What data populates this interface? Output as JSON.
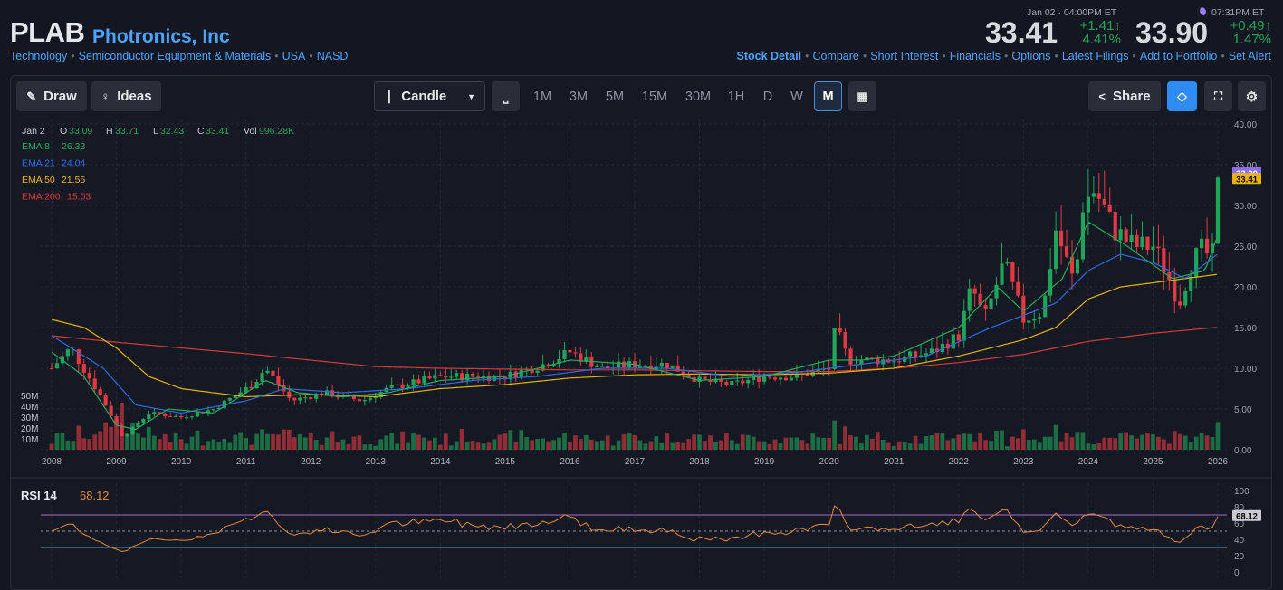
{
  "header": {
    "ticker": "PLAB",
    "company": "Photronics, Inc",
    "breadcrumbs": [
      "Technology",
      "Semiconductor Equipment & Materials",
      "USA",
      "NASD"
    ],
    "close_time": "Jan 02 · 04:00PM ET",
    "close_price": "33.41",
    "close_change": "+1.41↑",
    "close_change_pct": "4.41%",
    "ah_time": "07:31PM ET",
    "ah_price": "33.90",
    "ah_change": "+0.49↑",
    "ah_change_pct": "1.47%",
    "links": [
      "Stock Detail",
      "Compare",
      "Short Interest",
      "Financials",
      "Options",
      "Latest Filings",
      "Add to Portfolio",
      "Set Alert"
    ]
  },
  "toolbar": {
    "draw": "Draw",
    "ideas": "Ideas",
    "chart_type": "Candle",
    "timeframes": [
      "1M",
      "3M",
      "5M",
      "15M",
      "30M",
      "1H",
      "D",
      "W",
      "M"
    ],
    "selected": "M",
    "share": "Share"
  },
  "legend": {
    "date": "Jan 2",
    "o_label": "O",
    "o": "33.09",
    "h_label": "H",
    "h": "33.71",
    "l_label": "L",
    "l": "32.43",
    "c_label": "C",
    "c": "33.41",
    "vol_label": "Vol",
    "vol": "996.28K",
    "ema": [
      {
        "label": "EMA 8",
        "value": "26.33",
        "color": "#22ab5c"
      },
      {
        "label": "EMA 21",
        "value": "24.04",
        "color": "#2e6be6"
      },
      {
        "label": "EMA 50",
        "value": "21.55",
        "color": "#e8b20c"
      },
      {
        "label": "EMA 200",
        "value": "15.03",
        "color": "#d23b3b"
      }
    ]
  },
  "rsi": {
    "label": "RSI 14",
    "value": "68.12",
    "ticks": [
      "100",
      "80",
      "60",
      "40",
      "20",
      "0"
    ],
    "levels": [
      70,
      50,
      30
    ]
  },
  "colors": {
    "up": "#21a35a",
    "down": "#e23a43",
    "ahTag": "#8e6cf7",
    "closeTag": "#e8b20c"
  },
  "chart_data": {
    "type": "candlestick",
    "symbol": "PLAB",
    "interval": "monthly",
    "x_labels": [
      "2008",
      "2009",
      "2010",
      "2011",
      "2012",
      "2013",
      "2014",
      "2015",
      "2016",
      "2017",
      "2018",
      "2019",
      "2020",
      "2021",
      "2022",
      "2023",
      "2024",
      "2025",
      "2026"
    ],
    "y_ticks": [
      "40.00",
      "35.00",
      "30.00",
      "25.00",
      "20.00",
      "15.00",
      "10.00",
      "5.00",
      "0.00"
    ],
    "volume_ticks": [
      "50M",
      "40M",
      "30M",
      "20M",
      "10M"
    ],
    "last_close": 33.41,
    "after_hours": 33.9,
    "close_path": [
      [
        2008,
        10
      ],
      [
        2008.3,
        12.5
      ],
      [
        2008.8,
        6
      ],
      [
        2009.1,
        1.5
      ],
      [
        2009.5,
        4.5
      ],
      [
        2010,
        4
      ],
      [
        2010.5,
        5
      ],
      [
        2011.1,
        8
      ],
      [
        2011.3,
        10
      ],
      [
        2011.7,
        6
      ],
      [
        2012.2,
        7
      ],
      [
        2012.8,
        6
      ],
      [
        2013.2,
        7.5
      ],
      [
        2014,
        9
      ],
      [
        2015,
        9
      ],
      [
        2015.6,
        10.5
      ],
      [
        2016,
        12
      ],
      [
        2016.5,
        10
      ],
      [
        2017,
        10.5
      ],
      [
        2017.5,
        10.5
      ],
      [
        2018,
        8.5
      ],
      [
        2018.5,
        8
      ],
      [
        2019,
        9
      ],
      [
        2019.5,
        9
      ],
      [
        2020,
        10
      ],
      [
        2020.1,
        15
      ],
      [
        2020.3,
        11
      ],
      [
        2020.7,
        11
      ],
      [
        2021,
        11
      ],
      [
        2021.6,
        12
      ],
      [
        2022,
        14
      ],
      [
        2022.2,
        20
      ],
      [
        2022.4,
        16
      ],
      [
        2022.7,
        23
      ],
      [
        2023,
        16
      ],
      [
        2023.3,
        17
      ],
      [
        2023.5,
        27
      ],
      [
        2023.8,
        20
      ],
      [
        2023.9,
        30
      ],
      [
        2024.1,
        32
      ],
      [
        2024.4,
        27
      ],
      [
        2024.7,
        25
      ],
      [
        2025,
        25
      ],
      [
        2025.2,
        22
      ],
      [
        2025.4,
        18
      ],
      [
        2025.6,
        23
      ],
      [
        2025.8,
        25
      ],
      [
        2025.9,
        22
      ],
      [
        2026,
        33.41
      ]
    ],
    "ema8_path": [
      [
        2008,
        12
      ],
      [
        2008.5,
        9
      ],
      [
        2009,
        3
      ],
      [
        2009.3,
        2.5
      ],
      [
        2009.8,
        5
      ],
      [
        2010.5,
        4.5
      ],
      [
        2011.3,
        8.5
      ],
      [
        2011.8,
        7
      ],
      [
        2012.5,
        6.5
      ],
      [
        2013.2,
        7
      ],
      [
        2014,
        8.5
      ],
      [
        2015,
        9
      ],
      [
        2016,
        11
      ],
      [
        2017,
        10.5
      ],
      [
        2018,
        8.5
      ],
      [
        2019,
        9
      ],
      [
        2020,
        11
      ],
      [
        2020.5,
        11
      ],
      [
        2021,
        11.5
      ],
      [
        2022,
        15
      ],
      [
        2022.6,
        20
      ],
      [
        2023,
        17
      ],
      [
        2023.6,
        21
      ],
      [
        2024,
        28
      ],
      [
        2024.6,
        25
      ],
      [
        2025.3,
        21
      ],
      [
        2025.8,
        22
      ],
      [
        2026,
        26.33
      ]
    ],
    "ema21_path": [
      [
        2008,
        14
      ],
      [
        2008.8,
        10
      ],
      [
        2009.3,
        5.5
      ],
      [
        2010,
        4.5
      ],
      [
        2011,
        6
      ],
      [
        2011.6,
        7.5
      ],
      [
        2012.5,
        7
      ],
      [
        2013.5,
        7.5
      ],
      [
        2014.5,
        8.5
      ],
      [
        2015.5,
        9
      ],
      [
        2016.5,
        10
      ],
      [
        2017.5,
        10
      ],
      [
        2018.5,
        9
      ],
      [
        2019.5,
        9.5
      ],
      [
        2020.5,
        10.5
      ],
      [
        2021.5,
        11.5
      ],
      [
        2022.5,
        15
      ],
      [
        2023.5,
        18
      ],
      [
        2024,
        22
      ],
      [
        2024.5,
        24
      ],
      [
        2025,
        23
      ],
      [
        2025.5,
        21
      ],
      [
        2026,
        24.04
      ]
    ],
    "ema50_path": [
      [
        2008,
        16
      ],
      [
        2008.5,
        15
      ],
      [
        2009,
        12.5
      ],
      [
        2009.5,
        9
      ],
      [
        2010,
        7.5
      ],
      [
        2011,
        6.5
      ],
      [
        2012,
        6.8
      ],
      [
        2013,
        6.5
      ],
      [
        2014,
        7.5
      ],
      [
        2015,
        8
      ],
      [
        2016,
        8.8
      ],
      [
        2017,
        9.2
      ],
      [
        2018,
        9.3
      ],
      [
        2019,
        9.2
      ],
      [
        2020,
        9.4
      ],
      [
        2021,
        10
      ],
      [
        2022,
        11.5
      ],
      [
        2023,
        13.5
      ],
      [
        2023.5,
        15
      ],
      [
        2024,
        18.5
      ],
      [
        2024.5,
        20
      ],
      [
        2025,
        20.5
      ],
      [
        2026,
        21.55
      ]
    ],
    "ema200_path": [
      [
        2008,
        14
      ],
      [
        2009,
        13.2
      ],
      [
        2010,
        12.5
      ],
      [
        2011,
        11.8
      ],
      [
        2012,
        11
      ],
      [
        2013,
        10.2
      ],
      [
        2014,
        10
      ],
      [
        2015,
        9.9
      ],
      [
        2016,
        9.8
      ],
      [
        2017,
        9.8
      ],
      [
        2018,
        9.7
      ],
      [
        2019,
        9.6
      ],
      [
        2020,
        9.6
      ],
      [
        2021,
        10
      ],
      [
        2022,
        10.7
      ],
      [
        2023,
        11.7
      ],
      [
        2024,
        13.3
      ],
      [
        2025,
        14.3
      ],
      [
        2026,
        15.03
      ]
    ]
  }
}
